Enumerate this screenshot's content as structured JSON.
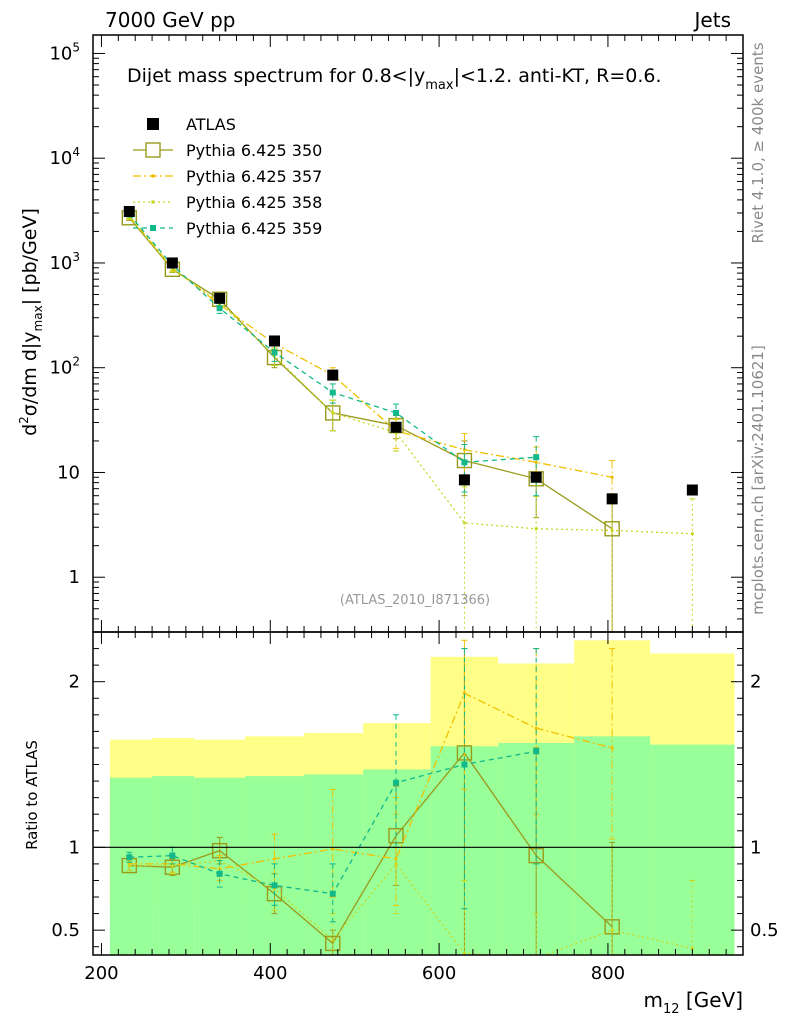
{
  "header": {
    "left": "7000 GeV pp",
    "right": "Jets",
    "title_main": "Dijet mass spectrum for 0.8<|y",
    "title_sub": "max",
    "title_rest": "|<1.2.  anti-KT, R=0.6."
  },
  "side": {
    "rivet": "Rivet 4.1.0, ≥ 400k events",
    "mcplots": "mcplots.cern.ch [arXiv:2401.10621]"
  },
  "watermark": "(ATLAS_2010_I871366)",
  "colors": {
    "atlas": "#000000",
    "p350": "#999a1a",
    "p357": "#f0c000",
    "p358": "#c8d820",
    "p359": "#10b88a",
    "band_yellow": "#ffff88",
    "band_green": "#99ff99"
  },
  "chart_data": [
    {
      "type": "scatter",
      "panel": "main",
      "yscale": "log",
      "title": "Dijet mass spectrum for 0.8<|y_max|<1.2.  anti-KT, R=0.6.",
      "ylabel_parts": {
        "a": "d",
        "b": "2",
        "c": "σ/dm d|y",
        "d": "max",
        "e": "| [pb/GeV]"
      },
      "xlabel_parts": {
        "a": "m",
        "b": "12",
        "c": " [GeV]"
      },
      "xlim": [
        190,
        960
      ],
      "ylim": [
        0.3,
        150000
      ],
      "yticks": [
        {
          "value": 1,
          "label": "1"
        },
        {
          "value": 10,
          "label": "10"
        },
        {
          "value": 100,
          "label": "10",
          "exp": "2"
        },
        {
          "value": 1000,
          "label": "10",
          "exp": "3"
        },
        {
          "value": 10000,
          "label": "10",
          "exp": "4"
        },
        {
          "value": 100000,
          "label": "10",
          "exp": "5"
        }
      ],
      "legend_position": "top-left",
      "series": [
        {
          "name": "ATLAS",
          "key": "atlas",
          "style": "data",
          "points": [
            {
              "x": 233,
              "y": 3100
            },
            {
              "x": 284,
              "y": 1000
            },
            {
              "x": 340,
              "y": 460
            },
            {
              "x": 405,
              "y": 180
            },
            {
              "x": 474,
              "y": 85
            },
            {
              "x": 549,
              "y": 27
            },
            {
              "x": 630,
              "y": 8.5
            },
            {
              "x": 715,
              "y": 9.0
            },
            {
              "x": 805,
              "y": 5.6
            },
            {
              "x": 900,
              "y": 6.8
            }
          ]
        },
        {
          "name": "Pythia 6.425 350",
          "key": "p350",
          "style": "solid-square",
          "points": [
            {
              "x": 233,
              "y": 2700,
              "err": 150
            },
            {
              "x": 284,
              "y": 870,
              "err": 60
            },
            {
              "x": 340,
              "y": 450,
              "err": 40
            },
            {
              "x": 405,
              "y": 125,
              "err": 25
            },
            {
              "x": 474,
              "y": 37,
              "err": 12
            },
            {
              "x": 549,
              "y": 28,
              "err": 7
            },
            {
              "x": 630,
              "y": 13,
              "err": 7
            },
            {
              "x": 715,
              "y": 8.7,
              "err": 5
            },
            {
              "x": 805,
              "y": 2.9,
              "err": 3
            }
          ]
        },
        {
          "name": "Pythia 6.425 357",
          "key": "p357",
          "style": "dashdot",
          "points": [
            {
              "x": 233,
              "y": 2800,
              "err": 150
            },
            {
              "x": 284,
              "y": 900,
              "err": 60
            },
            {
              "x": 340,
              "y": 400,
              "err": 40
            },
            {
              "x": 405,
              "y": 170,
              "err": 25
            },
            {
              "x": 474,
              "y": 85,
              "err": 15
            },
            {
              "x": 549,
              "y": 25,
              "err": 8
            },
            {
              "x": 630,
              "y": 16.5,
              "err": 7
            },
            {
              "x": 715,
              "y": 12.5,
              "err": 5
            },
            {
              "x": 805,
              "y": 9.0,
              "err": 4
            }
          ]
        },
        {
          "name": "Pythia 6.425 358",
          "key": "p358",
          "style": "dotted",
          "points": [
            {
              "x": 233,
              "y": 2750,
              "err": 150
            },
            {
              "x": 284,
              "y": 880,
              "err": 60
            },
            {
              "x": 340,
              "y": 420,
              "err": 40
            },
            {
              "x": 405,
              "y": 130,
              "err": 25
            },
            {
              "x": 474,
              "y": 37,
              "err": 12
            },
            {
              "x": 549,
              "y": 24,
              "err": 8
            },
            {
              "x": 630,
              "y": 3.3,
              "err": 4
            },
            {
              "x": 715,
              "y": 2.9,
              "err": 3
            },
            {
              "x": 805,
              "y": 2.8,
              "err": 3
            },
            {
              "x": 900,
              "y": 2.6,
              "err": 3
            }
          ]
        },
        {
          "name": "Pythia 6.425 359",
          "key": "p359",
          "style": "dashed",
          "points": [
            {
              "x": 233,
              "y": 2900,
              "err": 150
            },
            {
              "x": 284,
              "y": 950,
              "err": 60
            },
            {
              "x": 340,
              "y": 370,
              "err": 40
            },
            {
              "x": 405,
              "y": 140,
              "err": 25
            },
            {
              "x": 474,
              "y": 58,
              "err": 12
            },
            {
              "x": 549,
              "y": 37,
              "err": 8
            },
            {
              "x": 630,
              "y": 12.5,
              "err": 6
            },
            {
              "x": 715,
              "y": 14,
              "err": 8
            }
          ]
        }
      ]
    },
    {
      "type": "scatter",
      "panel": "ratio",
      "ylabel": "Ratio to ATLAS",
      "xlim": [
        190,
        960
      ],
      "ylim": [
        0.35,
        2.3
      ],
      "yticks": [
        {
          "value": 0.5,
          "label": "0.5"
        },
        {
          "value": 1,
          "label": "1"
        },
        {
          "value": 2,
          "label": "2"
        }
      ],
      "xticks": [
        {
          "value": 200,
          "label": "200"
        },
        {
          "value": 400,
          "label": "400"
        },
        {
          "value": 600,
          "label": "600"
        },
        {
          "value": 800,
          "label": "800"
        }
      ],
      "bands": [
        {
          "lo": 210,
          "hi": 260,
          "y_lo": 0.65,
          "y_hi": 1.65,
          "g_lo": 0.35,
          "g_hi": 1.42
        },
        {
          "lo": 260,
          "hi": 310,
          "y_lo": 0.64,
          "y_hi": 1.66,
          "g_lo": 0.35,
          "g_hi": 1.43
        },
        {
          "lo": 310,
          "hi": 370,
          "y_lo": 0.65,
          "y_hi": 1.65,
          "g_lo": 0.35,
          "g_hi": 1.42
        },
        {
          "lo": 370,
          "hi": 440,
          "y_lo": 0.64,
          "y_hi": 1.67,
          "g_lo": 0.35,
          "g_hi": 1.43
        },
        {
          "lo": 440,
          "hi": 510,
          "y_lo": 0.63,
          "y_hi": 1.69,
          "g_lo": 0.35,
          "g_hi": 1.44
        },
        {
          "lo": 510,
          "hi": 590,
          "y_lo": 0.55,
          "y_hi": 1.75,
          "g_lo": 0.35,
          "g_hi": 1.47
        },
        {
          "lo": 590,
          "hi": 670,
          "y_lo": 0.35,
          "y_hi": 2.15,
          "g_lo": 0.35,
          "g_hi": 1.61
        },
        {
          "lo": 670,
          "hi": 760,
          "y_lo": 0.36,
          "y_hi": 2.11,
          "g_lo": 0.35,
          "g_hi": 1.63
        },
        {
          "lo": 760,
          "hi": 850,
          "y_lo": 0.35,
          "y_hi": 2.25,
          "g_lo": 0.35,
          "g_hi": 1.67
        },
        {
          "lo": 850,
          "hi": 950,
          "y_lo": 0.35,
          "y_hi": 2.17,
          "g_lo": 0.35,
          "g_hi": 1.62
        }
      ],
      "series": [
        {
          "name": "Pythia 6.425 350",
          "key": "p350",
          "style": "solid-square",
          "points": [
            {
              "x": 233,
              "y": 0.89,
              "lo": 0.86,
              "hi": 0.92
            },
            {
              "x": 284,
              "y": 0.88,
              "lo": 0.83,
              "hi": 0.93
            },
            {
              "x": 340,
              "y": 0.98,
              "lo": 0.9,
              "hi": 1.06
            },
            {
              "x": 405,
              "y": 0.72,
              "lo": 0.6,
              "hi": 0.84
            },
            {
              "x": 474,
              "y": 0.42,
              "lo": 0.35,
              "hi": 0.5
            },
            {
              "x": 549,
              "y": 1.07,
              "lo": 0.77,
              "hi": 1.37
            },
            {
              "x": 630,
              "y": 1.57,
              "lo": 0.35,
              "hi": 2.2
            },
            {
              "x": 715,
              "y": 0.95,
              "lo": 0.35,
              "hi": 1.6
            },
            {
              "x": 805,
              "y": 0.52,
              "lo": 0.35,
              "hi": 1.03
            }
          ]
        },
        {
          "name": "Pythia 6.425 357",
          "key": "p357",
          "style": "dashdot",
          "points": [
            {
              "x": 233,
              "y": 0.9,
              "lo": 0.86,
              "hi": 0.94
            },
            {
              "x": 284,
              "y": 0.9,
              "lo": 0.85,
              "hi": 0.95
            },
            {
              "x": 340,
              "y": 0.87,
              "lo": 0.8,
              "hi": 0.95
            },
            {
              "x": 405,
              "y": 0.93,
              "lo": 0.78,
              "hi": 1.08
            },
            {
              "x": 474,
              "y": 0.99,
              "lo": 0.7,
              "hi": 1.35
            },
            {
              "x": 549,
              "y": 0.93,
              "lo": 0.65,
              "hi": 1.3
            },
            {
              "x": 630,
              "y": 1.93,
              "lo": 1.35,
              "hi": 2.25
            },
            {
              "x": 715,
              "y": 1.72,
              "lo": 1.2,
              "hi": 2.2
            },
            {
              "x": 805,
              "y": 1.6,
              "lo": 1.05,
              "hi": 2.2
            }
          ]
        },
        {
          "name": "Pythia 6.425 358",
          "key": "p358",
          "style": "dotted",
          "points": [
            {
              "x": 233,
              "y": 0.89,
              "lo": 0.86,
              "hi": 0.92
            },
            {
              "x": 284,
              "y": 0.89,
              "lo": 0.84,
              "hi": 0.94
            },
            {
              "x": 340,
              "y": 0.92,
              "lo": 0.84,
              "hi": 1.0
            },
            {
              "x": 405,
              "y": 0.75,
              "lo": 0.62,
              "hi": 0.9
            },
            {
              "x": 474,
              "y": 0.44,
              "lo": 0.35,
              "hi": 0.6
            },
            {
              "x": 549,
              "y": 0.9,
              "lo": 0.6,
              "hi": 1.2
            },
            {
              "x": 630,
              "y": 0.36,
              "lo": 0.35,
              "hi": 0.8
            },
            {
              "x": 715,
              "y": 0.33,
              "lo": 0.33,
              "hi": 0.6
            },
            {
              "x": 805,
              "y": 0.5,
              "lo": 0.35,
              "hi": 1.0
            },
            {
              "x": 900,
              "y": 0.39,
              "lo": 0.35,
              "hi": 0.8
            }
          ]
        },
        {
          "name": "Pythia 6.425 359",
          "key": "p359",
          "style": "dashed",
          "points": [
            {
              "x": 233,
              "y": 0.94,
              "lo": 0.91,
              "hi": 0.97
            },
            {
              "x": 284,
              "y": 0.95,
              "lo": 0.9,
              "hi": 1.0
            },
            {
              "x": 340,
              "y": 0.84,
              "lo": 0.76,
              "hi": 0.92
            },
            {
              "x": 405,
              "y": 0.77,
              "lo": 0.65,
              "hi": 0.9
            },
            {
              "x": 474,
              "y": 0.72,
              "lo": 0.55,
              "hi": 0.9
            },
            {
              "x": 549,
              "y": 1.39,
              "lo": 1.0,
              "hi": 1.8
            },
            {
              "x": 630,
              "y": 1.5,
              "lo": 0.63,
              "hi": 2.2
            },
            {
              "x": 715,
              "y": 1.58,
              "lo": 0.9,
              "hi": 2.2
            }
          ]
        }
      ]
    }
  ]
}
